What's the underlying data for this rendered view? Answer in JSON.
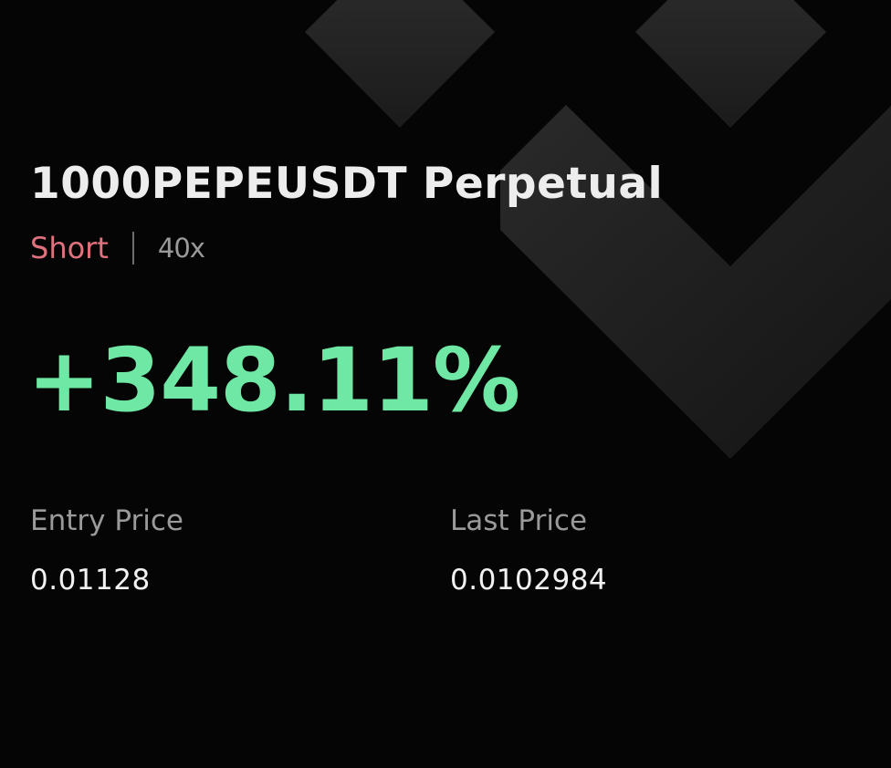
{
  "position": {
    "symbol": "1000PEPEUSDT Perpetual",
    "side": "Short",
    "leverage": "40x",
    "pnl_percent": "+348.11%"
  },
  "prices": {
    "entry_label": "Entry Price",
    "entry_value": "0.01128",
    "last_label": "Last Price",
    "last_value": "0.0102984"
  },
  "colors": {
    "background": "#050505",
    "title_text": "#ededed",
    "short_red": "#e0727e",
    "profit_green": "#6ee8a4",
    "muted_text": "#9a9a9a",
    "value_text": "#f2f2f2",
    "divider": "#6e6e6e"
  },
  "icons": {
    "background": "brand-logo-watermark"
  }
}
